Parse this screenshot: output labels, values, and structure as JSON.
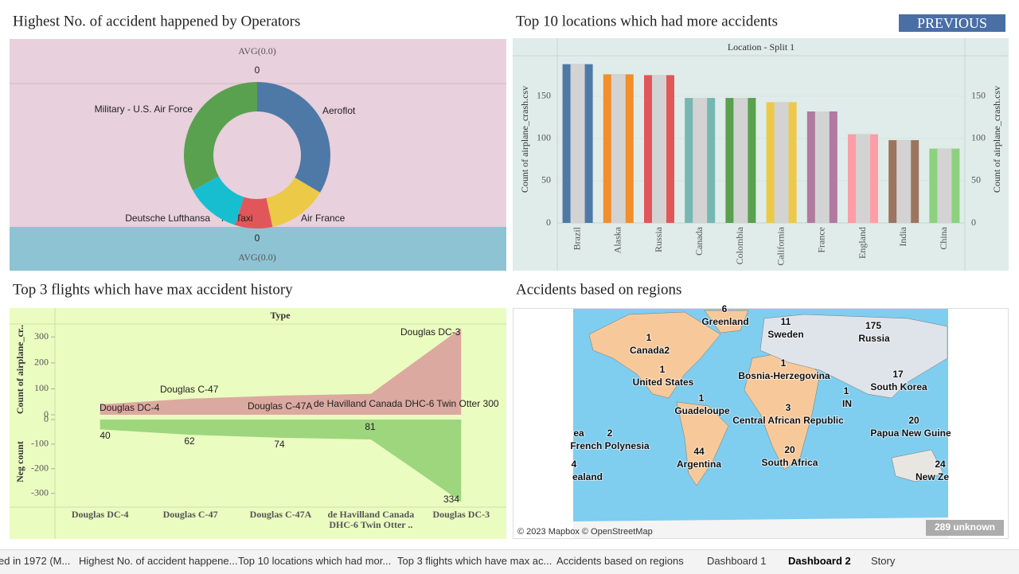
{
  "button": "PREVIOUS",
  "chart_data": [
    {
      "type": "pie",
      "title": "Highest No. of accident happened by Operators",
      "categories": [
        "Aeroflot",
        "Air France",
        "Air Taxi",
        "Deutsche Lufthansa",
        "Military - U.S. Air Force"
      ],
      "values": [
        179,
        70,
        44,
        65,
        176
      ],
      "colors": [
        "#4e79a7",
        "#edc948",
        "#e15759",
        "#17becf",
        "#59a14f"
      ],
      "top_axis": {
        "label": "AVG(0.0)",
        "tick": 0
      },
      "bottom_axis": {
        "label": "AVG(0.0)",
        "tick": 0
      }
    },
    {
      "type": "bar",
      "title": "Top 10 locations which had more accidents",
      "header": "Location - Split 1",
      "ylabel": "Count of airplane_crash.csv",
      "categories": [
        "Brazil",
        "Alaska",
        "Russia",
        "Canada",
        "Colombia",
        "California",
        "France",
        "England",
        "India",
        "China"
      ],
      "values": [
        188,
        176,
        175,
        148,
        148,
        143,
        132,
        105,
        98,
        88
      ],
      "colors": [
        "#4e79a7",
        "#f28e2b",
        "#e15759",
        "#76b7b2",
        "#59a14f",
        "#edc948",
        "#b07aa1",
        "#ff9da7",
        "#9c755f",
        "#8cd17d"
      ],
      "ylim": [
        0,
        198
      ],
      "yticks": [
        0,
        50,
        100,
        150
      ]
    },
    {
      "type": "area",
      "title": "Top 3 flights which have max accident history",
      "header": "Type",
      "categories": [
        "Douglas DC-4",
        "Douglas C-47",
        "Douglas C-47A",
        "de Havilland Canada DHC-6 Twin Otter ..",
        "Douglas DC-3"
      ],
      "ylabel": "Count of airplane_cr..",
      "y2label": "Neg count",
      "ylim": [
        0,
        350
      ],
      "yticks": [
        0,
        100,
        200,
        300
      ],
      "y2lim": [
        -356,
        0
      ],
      "y2ticks": [
        0,
        -100,
        -200,
        -300
      ],
      "series": [
        {
          "color": "#d99a9a",
          "values": [
            40,
            62,
            74,
            81,
            334
          ],
          "labels": [
            "Douglas DC-4",
            "Douglas C-47",
            "Douglas C-47A",
            "de Havilland Canada DHC-6 Twin Otter 300",
            "Douglas DC-3"
          ]
        },
        {
          "color": "#8fcf70",
          "axis": "y2",
          "values": [
            -40,
            -62,
            -74,
            -81,
            -334
          ],
          "value_labels": [
            "40",
            "62",
            "74",
            "81",
            "334"
          ]
        }
      ]
    }
  ],
  "map": {
    "title": "Accidents based on regions",
    "points": [
      {
        "count": 6,
        "name": "Greenland"
      },
      {
        "count": 11,
        "name": "Sweden"
      },
      {
        "count": 175,
        "name": "Russia"
      },
      {
        "count": 1,
        "name": "Canada2"
      },
      {
        "count": 1,
        "name": "United States"
      },
      {
        "count": 1,
        "name": "Bosnia-Herzegovina"
      },
      {
        "count": 17,
        "name": "South Korea"
      },
      {
        "count": 1,
        "name": "Guadeloupe"
      },
      {
        "count": 1,
        "name": "IN"
      },
      {
        "count": 3,
        "name": "Central African Republic"
      },
      {
        "count": 20,
        "name": "Papua New Guine"
      },
      {
        "count": 2,
        "name": "French Polynesia"
      },
      {
        "count": 44,
        "name": "Argentina"
      },
      {
        "count": 20,
        "name": "South Africa"
      },
      {
        "name": "ea"
      },
      {
        "count": 4,
        "name": "ealand"
      },
      {
        "count": 24,
        "name": "New Ze"
      }
    ],
    "attribution": "© 2023 Mapbox © OpenStreetMap",
    "unknown": "289 unknown"
  },
  "tabs": [
    "ed in 1972 (M...",
    "Highest No. of accident happene...",
    "Top 10 locations which had mor...",
    "Top 3 flights which have max ac...",
    "Accidents based on regions",
    "Dashboard 1",
    "Dashboard 2",
    "Story"
  ]
}
